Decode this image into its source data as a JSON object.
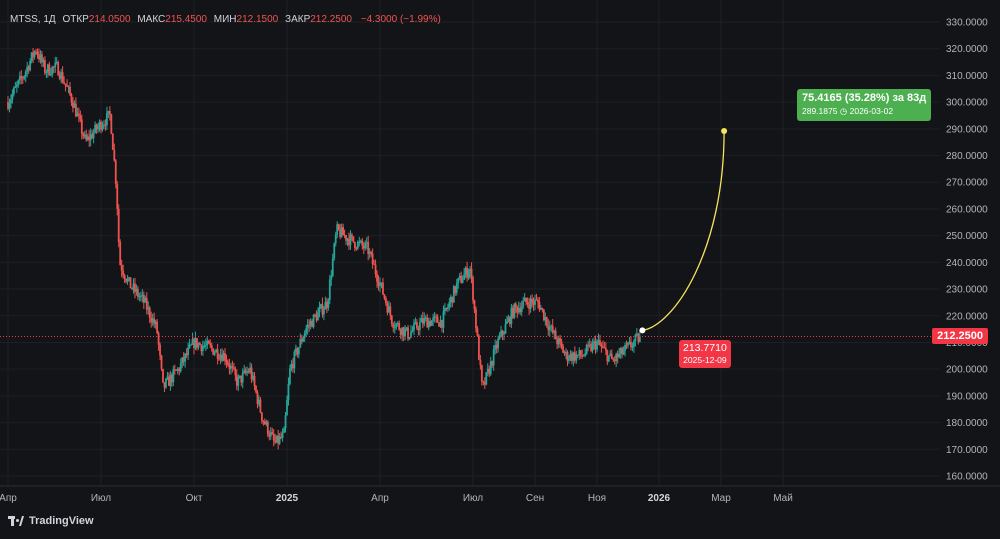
{
  "header": {
    "symbol": "MTSS, 1Д",
    "open_label": "ОТКР",
    "open": "214.0500",
    "high_label": "МАКС",
    "high": "215.4500",
    "low_label": "МИН",
    "low": "212.1500",
    "close_label": "ЗАКР",
    "close": "212.2500",
    "change": "−4.3000 (−1.99%)"
  },
  "price_tag": "212.2500",
  "projection": {
    "label": "75.4165 (35.28%) за 83д",
    "target": "289.1875",
    "target_date": "2026-03-02",
    "start_value": "213.7710",
    "start_date": "2025-12-09"
  },
  "brand": "TradingView",
  "colors": {
    "bg": "#131417",
    "up": "#26a69a",
    "down": "#ef5350",
    "grid": "#1e2127",
    "projection": "#f7e45c",
    "green": "#4caf50",
    "red": "#f23645"
  },
  "chart_data": {
    "type": "candlestick",
    "title": "MTSS, 1Д",
    "ylim": [
      156,
      332
    ],
    "y_ticks": [
      "330.0000",
      "320.0000",
      "310.0000",
      "300.0000",
      "290.0000",
      "280.0000",
      "270.0000",
      "260.0000",
      "250.0000",
      "240.0000",
      "230.0000",
      "220.0000",
      "210.0000",
      "200.0000",
      "190.0000",
      "180.0000",
      "170.0000",
      "160.0000"
    ],
    "y_tick_values": [
      330,
      320,
      310,
      300,
      290,
      280,
      270,
      260,
      250,
      240,
      230,
      220,
      210,
      200,
      190,
      180,
      170,
      160
    ],
    "x_ticks": [
      "Апр",
      "Июл",
      "Окт",
      "2025",
      "Апр",
      "Июл",
      "Сен",
      "Ноя",
      "2026",
      "Мар",
      "Май"
    ],
    "x_tick_months": [
      0,
      3,
      6,
      9,
      12,
      15,
      17,
      19,
      21,
      23,
      25
    ],
    "series_path": [
      {
        "m": 0.0,
        "v": 300
      },
      {
        "m": 0.5,
        "v": 310
      },
      {
        "m": 0.9,
        "v": 320
      },
      {
        "m": 1.2,
        "v": 312
      },
      {
        "m": 1.6,
        "v": 313
      },
      {
        "m": 2.1,
        "v": 300
      },
      {
        "m": 2.5,
        "v": 285
      },
      {
        "m": 3.0,
        "v": 292
      },
      {
        "m": 3.3,
        "v": 295
      },
      {
        "m": 3.5,
        "v": 268
      },
      {
        "m": 3.6,
        "v": 240
      },
      {
        "m": 3.9,
        "v": 232
      },
      {
        "m": 4.4,
        "v": 225
      },
      {
        "m": 4.8,
        "v": 215
      },
      {
        "m": 5.0,
        "v": 193
      },
      {
        "m": 5.5,
        "v": 200
      },
      {
        "m": 6.0,
        "v": 210
      },
      {
        "m": 6.5,
        "v": 208
      },
      {
        "m": 7.0,
        "v": 205
      },
      {
        "m": 7.4,
        "v": 195
      },
      {
        "m": 7.8,
        "v": 200
      },
      {
        "m": 8.2,
        "v": 182
      },
      {
        "m": 8.6,
        "v": 172
      },
      {
        "m": 8.9,
        "v": 175
      },
      {
        "m": 9.1,
        "v": 200
      },
      {
        "m": 9.6,
        "v": 215
      },
      {
        "m": 10.3,
        "v": 225
      },
      {
        "m": 10.6,
        "v": 252
      },
      {
        "m": 11.1,
        "v": 248
      },
      {
        "m": 11.6,
        "v": 245
      },
      {
        "m": 12.0,
        "v": 232
      },
      {
        "m": 12.4,
        "v": 218
      },
      {
        "m": 12.9,
        "v": 213
      },
      {
        "m": 13.4,
        "v": 218
      },
      {
        "m": 14.0,
        "v": 218
      },
      {
        "m": 14.5,
        "v": 232
      },
      {
        "m": 14.9,
        "v": 238
      },
      {
        "m": 15.0,
        "v": 228
      },
      {
        "m": 15.3,
        "v": 192
      },
      {
        "m": 15.8,
        "v": 210
      },
      {
        "m": 16.3,
        "v": 222
      },
      {
        "m": 16.7,
        "v": 225
      },
      {
        "m": 17.1,
        "v": 225
      },
      {
        "m": 17.5,
        "v": 215
      },
      {
        "m": 18.0,
        "v": 205
      },
      {
        "m": 18.5,
        "v": 205
      },
      {
        "m": 19.0,
        "v": 210
      },
      {
        "m": 19.5,
        "v": 203
      },
      {
        "m": 20.0,
        "v": 208
      },
      {
        "m": 20.4,
        "v": 212.25
      }
    ],
    "projection": {
      "from": {
        "m": 20.4,
        "v": 213.771
      },
      "to": {
        "m": 23.1,
        "v": 289.1875
      }
    },
    "last_price": 212.25
  }
}
